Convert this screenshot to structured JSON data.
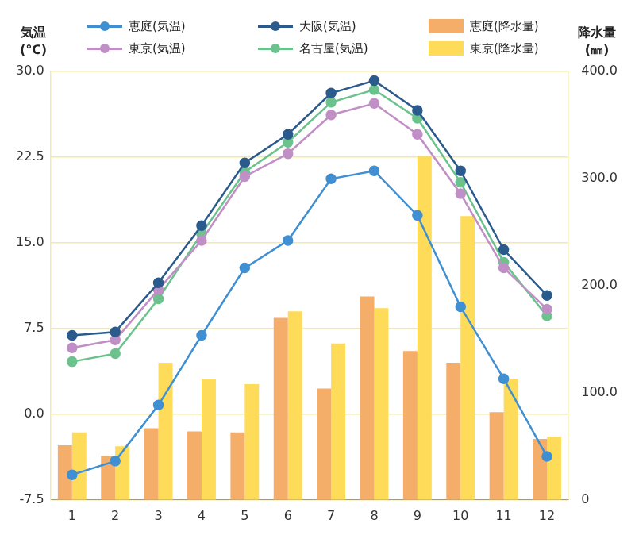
{
  "chart_data": {
    "type": "bar",
    "categories": [
      "1",
      "2",
      "3",
      "4",
      "5",
      "6",
      "7",
      "8",
      "9",
      "10",
      "11",
      "12"
    ],
    "ylabel": [
      "気温",
      "(℃)"
    ],
    "y2label": [
      "降水量",
      "(㎜)"
    ],
    "ylim": [
      -7.5,
      30
    ],
    "yticks": [
      -7.5,
      {
        "value": 0,
        "label": "0.0"
      },
      7.5,
      {
        "value": 15,
        "label": "15.0"
      },
      22.5,
      {
        "value": 30,
        "label": "30.0"
      }
    ],
    "y2lim": [
      0,
      400
    ],
    "y2ticks": [
      0,
      {
        "value": 100,
        "label": "100.0"
      },
      {
        "value": 200,
        "label": "200.0"
      },
      {
        "value": 300,
        "label": "300.0"
      },
      {
        "value": 400,
        "label": "400.0"
      }
    ],
    "grid": true,
    "legend": "top",
    "series": [
      {
        "name": "恵庭(気温)",
        "type": "line",
        "marker": "circle",
        "color": "#3f8fd2",
        "axis": "y",
        "values": [
          -5.3,
          -4.1,
          0.8,
          6.9,
          12.8,
          15.2,
          20.6,
          21.3,
          17.4,
          9.4,
          3.1,
          -3.7
        ]
      },
      {
        "name": "大阪(気温)",
        "type": "line",
        "marker": "circle",
        "color": "#2b5a8c",
        "axis": "y",
        "values": [
          6.9,
          7.2,
          11.5,
          16.5,
          22.0,
          24.5,
          28.1,
          29.2,
          26.6,
          21.3,
          14.4,
          10.4
        ]
      },
      {
        "name": "恵庭(降水量)",
        "type": "bar",
        "color": "#f5ad6a",
        "axis": "y2",
        "values": [
          51,
          41,
          67,
          64,
          63,
          170,
          104,
          190,
          139,
          128,
          82,
          57
        ]
      },
      {
        "name": "東京(気温)",
        "type": "line",
        "marker": "circle",
        "color": "#c08fc6",
        "axis": "y",
        "values": [
          5.8,
          6.5,
          10.9,
          15.2,
          20.8,
          22.8,
          26.2,
          27.2,
          24.5,
          19.3,
          12.8,
          9.2
        ]
      },
      {
        "name": "名古屋(気温)",
        "type": "line",
        "marker": "circle",
        "color": "#6cc28d",
        "axis": "y",
        "values": [
          4.6,
          5.3,
          10.1,
          15.8,
          21.2,
          23.8,
          27.3,
          28.4,
          25.9,
          20.3,
          13.3,
          8.6
        ]
      },
      {
        "name": "東京(降水量)",
        "type": "bar",
        "color": "#fedb58",
        "axis": "y2",
        "values": [
          63,
          50,
          128,
          113,
          108,
          176,
          146,
          179,
          321,
          265,
          113,
          59
        ]
      }
    ]
  }
}
